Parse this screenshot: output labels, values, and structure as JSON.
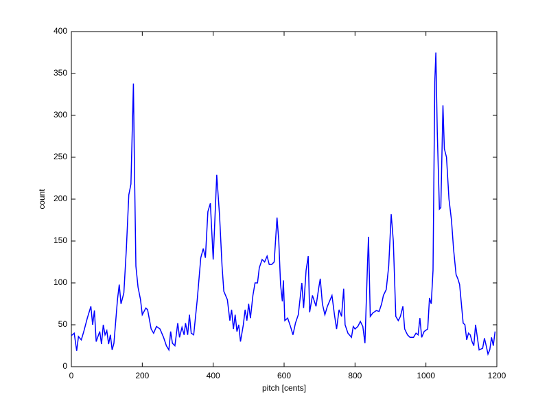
{
  "chart_data": {
    "type": "line",
    "x_label": "pitch [cents]",
    "y_label": "count",
    "xlim": [
      0,
      1200
    ],
    "ylim": [
      0,
      400
    ],
    "xticks": [
      0,
      200,
      400,
      600,
      800,
      1000,
      1200
    ],
    "yticks": [
      0,
      50,
      100,
      150,
      200,
      250,
      300,
      350,
      400
    ],
    "series": [
      {
        "color": "#0000ff",
        "x": [
          0,
          8,
          15,
          20,
          28,
          35,
          45,
          55,
          60,
          65,
          70,
          80,
          85,
          90,
          95,
          100,
          105,
          110,
          115,
          120,
          130,
          135,
          140,
          148,
          155,
          162,
          168,
          175,
          178,
          182,
          188,
          195,
          200,
          210,
          215,
          225,
          232,
          240,
          250,
          260,
          268,
          275,
          280,
          285,
          292,
          300,
          305,
          312,
          318,
          322,
          328,
          333,
          338,
          345,
          355,
          365,
          372,
          378,
          385,
          392,
          400,
          405,
          410,
          418,
          425,
          430,
          440,
          447,
          452,
          457,
          462,
          467,
          472,
          477,
          485,
          490,
          495,
          500,
          505,
          512,
          518,
          525,
          530,
          538,
          545,
          552,
          558,
          565,
          572,
          580,
          585,
          590,
          595,
          598,
          602,
          610,
          618,
          625,
          632,
          640,
          650,
          655,
          662,
          668,
          672,
          680,
          690,
          698,
          702,
          708,
          715,
          722,
          730,
          735,
          742,
          748,
          755,
          762,
          768,
          772,
          780,
          790,
          795,
          800,
          808,
          815,
          822,
          828,
          835,
          838,
          843,
          850,
          860,
          868,
          875,
          880,
          888,
          895,
          902,
          908,
          915,
          922,
          928,
          935,
          940,
          948,
          955,
          965,
          972,
          978,
          983,
          988,
          995,
          1005,
          1010,
          1015,
          1020,
          1025,
          1028,
          1032,
          1038,
          1042,
          1048,
          1052,
          1058,
          1065,
          1072,
          1078,
          1085,
          1090,
          1095,
          1100,
          1105,
          1110,
          1115,
          1120,
          1125,
          1130,
          1135,
          1140,
          1145,
          1150,
          1160,
          1165,
          1170,
          1175,
          1180,
          1185,
          1190,
          1195
        ],
        "values": [
          37,
          40,
          19,
          36,
          32,
          42,
          58,
          72,
          50,
          67,
          30,
          42,
          27,
          50,
          38,
          43,
          27,
          38,
          20,
          28,
          80,
          98,
          75,
          88,
          140,
          205,
          218,
          338,
          235,
          120,
          95,
          80,
          62,
          70,
          68,
          45,
          40,
          48,
          45,
          35,
          25,
          20,
          42,
          28,
          25,
          52,
          35,
          47,
          38,
          52,
          38,
          62,
          40,
          38,
          80,
          130,
          141,
          130,
          185,
          195,
          128,
          178,
          229,
          180,
          120,
          90,
          80,
          55,
          68,
          45,
          62,
          42,
          50,
          30,
          50,
          68,
          55,
          75,
          58,
          85,
          100,
          100,
          118,
          128,
          125,
          132,
          122,
          122,
          125,
          178,
          150,
          98,
          78,
          103,
          55,
          58,
          48,
          38,
          52,
          62,
          100,
          70,
          115,
          132,
          65,
          85,
          72,
          95,
          105,
          75,
          62,
          72,
          80,
          85,
          62,
          45,
          68,
          60,
          93,
          50,
          40,
          35,
          48,
          45,
          48,
          54,
          48,
          28,
          120,
          155,
          60,
          64,
          67,
          66,
          75,
          85,
          92,
          120,
          182,
          150,
          60,
          55,
          60,
          72,
          45,
          38,
          35,
          35,
          40,
          38,
          58,
          35,
          42,
          45,
          82,
          75,
          115,
          340,
          375,
          280,
          188,
          190,
          312,
          260,
          250,
          200,
          175,
          140,
          110,
          105,
          98,
          75,
          52,
          50,
          32,
          40,
          38,
          30,
          25,
          50,
          35,
          20,
          22,
          34,
          25,
          15,
          20,
          35,
          25,
          42
        ]
      }
    ]
  }
}
